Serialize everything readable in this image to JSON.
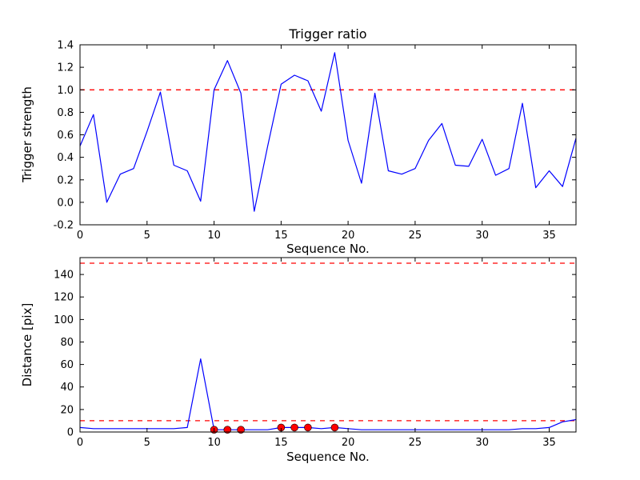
{
  "figure": {
    "background": "#ffffff",
    "line_color": "#0000ff",
    "threshold_color": "#ff0000",
    "axis_color": "#000000"
  },
  "chart_data": [
    {
      "type": "line",
      "name": "trigger-ratio-chart",
      "title": "Trigger ratio",
      "xlabel": "Sequence No.",
      "ylabel": "Trigger strength",
      "xlim": [
        0,
        37
      ],
      "ylim": [
        -0.2,
        1.4
      ],
      "grid": false,
      "legend": "none",
      "xticks": [
        "0",
        "5",
        "10",
        "15",
        "20",
        "25",
        "30",
        "35"
      ],
      "yticks": [
        "-0.2",
        "0.0",
        "0.2",
        "0.4",
        "0.6",
        "0.8",
        "1.0",
        "1.2",
        "1.4"
      ],
      "threshold_lines": [
        1.0
      ],
      "x": [
        0,
        1,
        2,
        3,
        4,
        5,
        6,
        7,
        8,
        9,
        10,
        11,
        12,
        13,
        14,
        15,
        16,
        17,
        18,
        19,
        20,
        21,
        22,
        23,
        24,
        25,
        26,
        27,
        28,
        29,
        30,
        31,
        32,
        33,
        34,
        35,
        36,
        37
      ],
      "y": [
        0.5,
        0.78,
        0.0,
        0.25,
        0.3,
        0.63,
        0.98,
        0.33,
        0.28,
        0.01,
        1.0,
        1.26,
        0.97,
        -0.08,
        0.5,
        1.05,
        1.13,
        1.08,
        0.81,
        1.33,
        0.55,
        0.17,
        0.97,
        0.28,
        0.25,
        0.3,
        0.55,
        0.7,
        0.33,
        0.32,
        0.56,
        0.24,
        0.3,
        0.88,
        0.13,
        0.28,
        0.14,
        0.57
      ]
    },
    {
      "type": "line",
      "name": "distance-chart",
      "title": "",
      "xlabel": "Sequence No.",
      "ylabel": "Distance [pix]",
      "xlim": [
        0,
        37
      ],
      "ylim": [
        0,
        155
      ],
      "grid": false,
      "legend": "none",
      "xticks": [
        "0",
        "5",
        "10",
        "15",
        "20",
        "25",
        "30",
        "35"
      ],
      "yticks": [
        "0",
        "20",
        "40",
        "60",
        "80",
        "100",
        "120",
        "140"
      ],
      "threshold_lines": [
        150,
        10
      ],
      "x": [
        0,
        1,
        2,
        3,
        4,
        5,
        6,
        7,
        8,
        9,
        10,
        11,
        12,
        13,
        14,
        15,
        16,
        17,
        18,
        19,
        20,
        21,
        22,
        23,
        24,
        25,
        26,
        27,
        28,
        29,
        30,
        31,
        32,
        33,
        34,
        35,
        36,
        37
      ],
      "y": [
        4,
        3,
        3,
        3,
        3,
        3,
        3,
        3,
        4,
        65,
        2,
        2,
        2,
        2,
        2,
        4,
        4,
        4,
        3,
        4,
        3,
        2,
        2,
        2,
        2,
        2,
        2,
        2,
        2,
        2,
        2,
        2,
        2,
        3,
        3,
        4,
        9,
        11
      ],
      "markers": {
        "shape": "circle",
        "color": "#ff0000",
        "x": [
          10,
          11,
          12,
          15,
          16,
          17,
          19
        ],
        "y": [
          2,
          2,
          2,
          4,
          4,
          4,
          4
        ]
      }
    }
  ]
}
